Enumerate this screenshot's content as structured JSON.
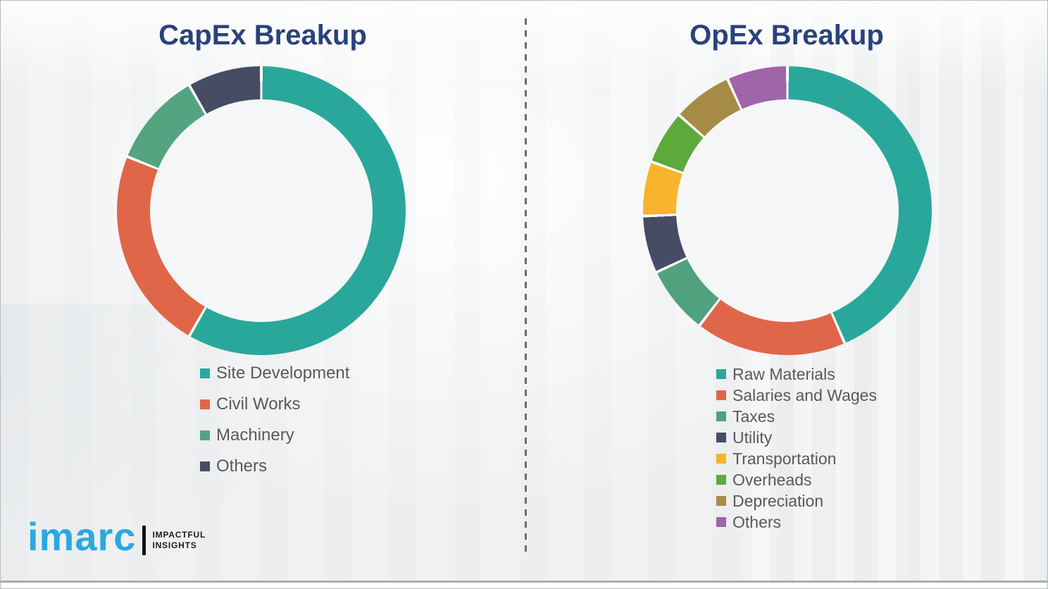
{
  "colors": {
    "title": "#2b4279",
    "legend_text": "#595959",
    "divider": "#696b6e",
    "background": "#f0f1f2",
    "logo_blue": "#29a9e1",
    "logo_black": "#1b1b1b"
  },
  "logo": {
    "brand": "imarc",
    "tagline": [
      "IMPACTFUL",
      "INSIGHTS"
    ]
  },
  "chart_data": [
    {
      "type": "pie",
      "subtype": "donut",
      "title": "CapEx Breakup",
      "labels": [
        "Site Development",
        "Civil Works",
        "Machinery",
        "Others"
      ],
      "values": [
        58.3,
        22.8,
        10.6,
        8.3
      ],
      "colors": [
        "#2aa79b",
        "#e0664a",
        "#54a482",
        "#454c63"
      ],
      "values_note": "percent share estimated from arc angles; no numeric labels shown in image",
      "start_angle_deg": 0,
      "direction": "clockwise",
      "legend_position": "bottom-left"
    },
    {
      "type": "pie",
      "subtype": "donut",
      "title": "OpEx Breakup",
      "labels": [
        "Raw Materials",
        "Salaries and Wages",
        "Taxes",
        "Utility",
        "Transportation",
        "Overheads",
        "Depreciation",
        "Others"
      ],
      "values": [
        43.5,
        16.9,
        7.6,
        6.4,
        6.1,
        6.0,
        6.7,
        6.8
      ],
      "colors": [
        "#2aa79b",
        "#e0664a",
        "#50a17d",
        "#454c63",
        "#f8b42c",
        "#5ea83c",
        "#a78b46",
        "#a064a8"
      ],
      "values_note": "percent share estimated from arc angles; no numeric labels shown in image",
      "start_angle_deg": 0,
      "direction": "clockwise",
      "legend_position": "bottom-left"
    }
  ]
}
